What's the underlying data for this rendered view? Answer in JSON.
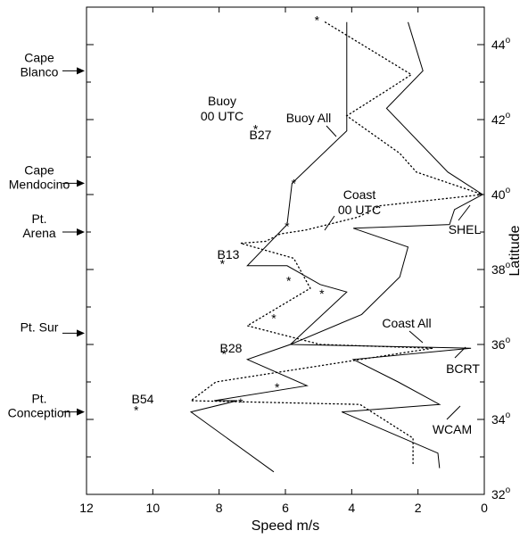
{
  "chart_data": {
    "type": "line",
    "xlabel": "Speed m/s",
    "ylabel": "Latitude",
    "xlim": [
      12,
      0
    ],
    "ylim": [
      32,
      45
    ],
    "x_ticks": [
      "12",
      "10",
      "8",
      "6",
      "4",
      "2",
      "0"
    ],
    "y_ticks": [
      "32",
      "34",
      "36",
      "38",
      "40",
      "42",
      "44"
    ],
    "y_tick_suffix": "o",
    "landmarks": [
      {
        "lines": [
          "Cape",
          "Blanco"
        ],
        "lat": 43.3
      },
      {
        "lines": [
          "Cape",
          "Mendocino"
        ],
        "lat": 40.3
      },
      {
        "lines": [
          "Pt.",
          "Arena"
        ],
        "lat": 39.0
      },
      {
        "lines": [
          "Pt. Sur"
        ],
        "lat": 36.3
      },
      {
        "lines": [
          "Pt.",
          "Conception"
        ],
        "lat": 34.2
      }
    ],
    "series": [
      {
        "name": "Buoy All",
        "style": "solid",
        "points": [
          [
            4.15,
            44.6
          ],
          [
            4.15,
            41.7
          ],
          [
            5.8,
            40.3
          ],
          [
            5.95,
            39.2
          ],
          [
            7.15,
            38.1
          ],
          [
            5.95,
            38.1
          ],
          [
            4.95,
            37.6
          ],
          [
            4.15,
            37.4
          ],
          [
            5.85,
            36.0
          ],
          [
            7.15,
            35.6
          ],
          [
            5.35,
            34.9
          ],
          [
            8.15,
            34.5
          ],
          [
            7.45,
            34.5
          ],
          [
            8.85,
            34.2
          ],
          [
            6.35,
            32.6
          ]
        ]
      },
      {
        "name": "Coast All",
        "style": "solid",
        "points": [
          [
            2.3,
            44.6
          ],
          [
            1.85,
            43.3
          ],
          [
            2.95,
            42.3
          ],
          [
            1.1,
            40.6
          ],
          [
            0.05,
            40.0
          ],
          [
            0.9,
            39.6
          ],
          [
            1.05,
            39.2
          ],
          [
            3.95,
            39.1
          ],
          [
            2.3,
            38.6
          ],
          [
            2.55,
            37.8
          ],
          [
            3.7,
            36.8
          ],
          [
            5.85,
            36.0
          ],
          [
            0.4,
            35.9
          ],
          [
            3.95,
            35.6
          ],
          [
            2.6,
            35.0
          ],
          [
            1.35,
            34.4
          ],
          [
            4.3,
            34.2
          ],
          [
            1.4,
            33.1
          ],
          [
            1.35,
            32.7
          ]
        ]
      },
      {
        "name": "Coast 00 UTC",
        "style": "dotted",
        "points": [
          [
            4.8,
            44.6
          ],
          [
            2.2,
            43.2
          ],
          [
            2.9,
            42.8
          ],
          [
            4.15,
            42.1
          ],
          [
            2.55,
            41.1
          ],
          [
            2.05,
            40.6
          ],
          [
            0.05,
            40.0
          ],
          [
            3.15,
            39.7
          ],
          [
            3.8,
            39.4
          ],
          [
            5.4,
            39.05
          ],
          [
            6.15,
            38.95
          ],
          [
            6.6,
            38.75
          ],
          [
            7.35,
            38.7
          ],
          [
            5.75,
            38.3
          ],
          [
            5.25,
            37.5
          ],
          [
            7.15,
            36.5
          ],
          [
            4.95,
            36.0
          ],
          [
            1.55,
            35.9
          ],
          [
            8.1,
            35.0
          ],
          [
            8.85,
            34.5
          ],
          [
            3.75,
            34.4
          ],
          [
            2.15,
            33.5
          ],
          [
            2.15,
            32.8
          ]
        ]
      }
    ],
    "points": [
      {
        "name": "Buoy 00 UTC",
        "x": 5.05,
        "y": 44.7
      },
      {
        "name": "B27",
        "x": 6.9,
        "y": 41.8
      },
      {
        "name": "",
        "x": 5.75,
        "y": 40.35
      },
      {
        "name": "",
        "x": 5.95,
        "y": 39.2
      },
      {
        "name": "B13",
        "x": 7.9,
        "y": 38.2
      },
      {
        "name": "",
        "x": 5.9,
        "y": 37.75
      },
      {
        "name": "",
        "x": 4.9,
        "y": 37.4
      },
      {
        "name": "",
        "x": 6.35,
        "y": 36.75
      },
      {
        "name": "B28",
        "x": 7.85,
        "y": 35.8
      },
      {
        "name": "",
        "x": 6.25,
        "y": 34.9
      },
      {
        "name": "",
        "x": 7.35,
        "y": 34.5
      },
      {
        "name": "B54",
        "x": 10.5,
        "y": 34.3
      }
    ],
    "annotations": [
      {
        "id": "buoy00",
        "lines": [
          "Buoy",
          "00 UTC"
        ]
      },
      {
        "id": "b27",
        "lines": [
          "B27"
        ]
      },
      {
        "id": "buoyall",
        "lines": [
          "Buoy All"
        ]
      },
      {
        "id": "coast00",
        "lines": [
          "Coast",
          "00 UTC"
        ]
      },
      {
        "id": "shel",
        "lines": [
          "SHEL"
        ]
      },
      {
        "id": "b13",
        "lines": [
          "B13"
        ]
      },
      {
        "id": "coastall",
        "lines": [
          "Coast All"
        ]
      },
      {
        "id": "b28",
        "lines": [
          "B28"
        ]
      },
      {
        "id": "bcrt",
        "lines": [
          "BCRT"
        ]
      },
      {
        "id": "b54",
        "lines": [
          "B54"
        ]
      },
      {
        "id": "wcam",
        "lines": [
          "WCAM"
        ]
      }
    ]
  }
}
